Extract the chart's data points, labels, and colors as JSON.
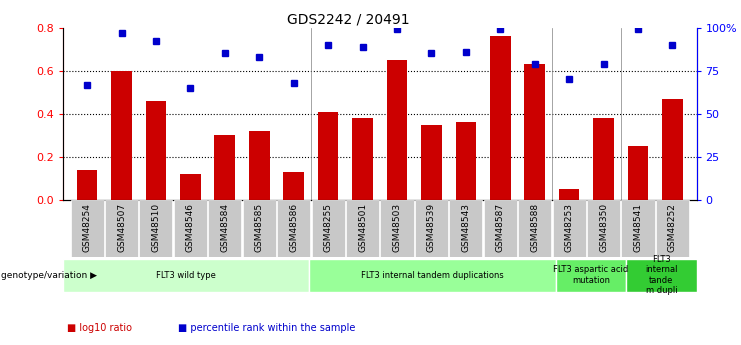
{
  "title": "GDS2242 / 20491",
  "samples": [
    "GSM48254",
    "GSM48507",
    "GSM48510",
    "GSM48546",
    "GSM48584",
    "GSM48585",
    "GSM48586",
    "GSM48255",
    "GSM48501",
    "GSM48503",
    "GSM48539",
    "GSM48543",
    "GSM48587",
    "GSM48588",
    "GSM48253",
    "GSM48350",
    "GSM48541",
    "GSM48252"
  ],
  "log10_ratio": [
    0.14,
    0.6,
    0.46,
    0.12,
    0.3,
    0.32,
    0.13,
    0.41,
    0.38,
    0.65,
    0.35,
    0.36,
    0.76,
    0.63,
    0.05,
    0.38,
    0.25,
    0.47
  ],
  "percentile_rank": [
    67,
    97,
    92,
    65,
    85,
    83,
    68,
    90,
    89,
    99,
    85,
    86,
    99,
    79,
    70,
    79,
    99,
    90
  ],
  "bar_color": "#cc0000",
  "dot_color": "#0000cc",
  "ylim_left": [
    0,
    0.8
  ],
  "ylim_right": [
    0,
    100
  ],
  "yticks_left": [
    0,
    0.2,
    0.4,
    0.6,
    0.8
  ],
  "yticks_right_vals": [
    0,
    25,
    50,
    75,
    100
  ],
  "yticks_right_labels": [
    "0",
    "25",
    "50",
    "75",
    "100%"
  ],
  "groups": [
    {
      "label": "FLT3 wild type",
      "start": 0,
      "end": 7,
      "color": "#ccffcc"
    },
    {
      "label": "FLT3 internal tandem duplications",
      "start": 7,
      "end": 14,
      "color": "#99ff99"
    },
    {
      "label": "FLT3 aspartic acid\nmutation",
      "start": 14,
      "end": 16,
      "color": "#66ee66"
    },
    {
      "label": "FLT3\ninternal\ntande\nm dupli",
      "start": 16,
      "end": 18,
      "color": "#33cc33"
    }
  ],
  "genotype_label": "genotype/variation",
  "legend_items": [
    {
      "label": "log10 ratio",
      "color": "#cc0000"
    },
    {
      "label": "percentile rank within the sample",
      "color": "#0000cc"
    }
  ],
  "bg_color": "#ffffff",
  "tick_label_bg": "#c8c8c8"
}
